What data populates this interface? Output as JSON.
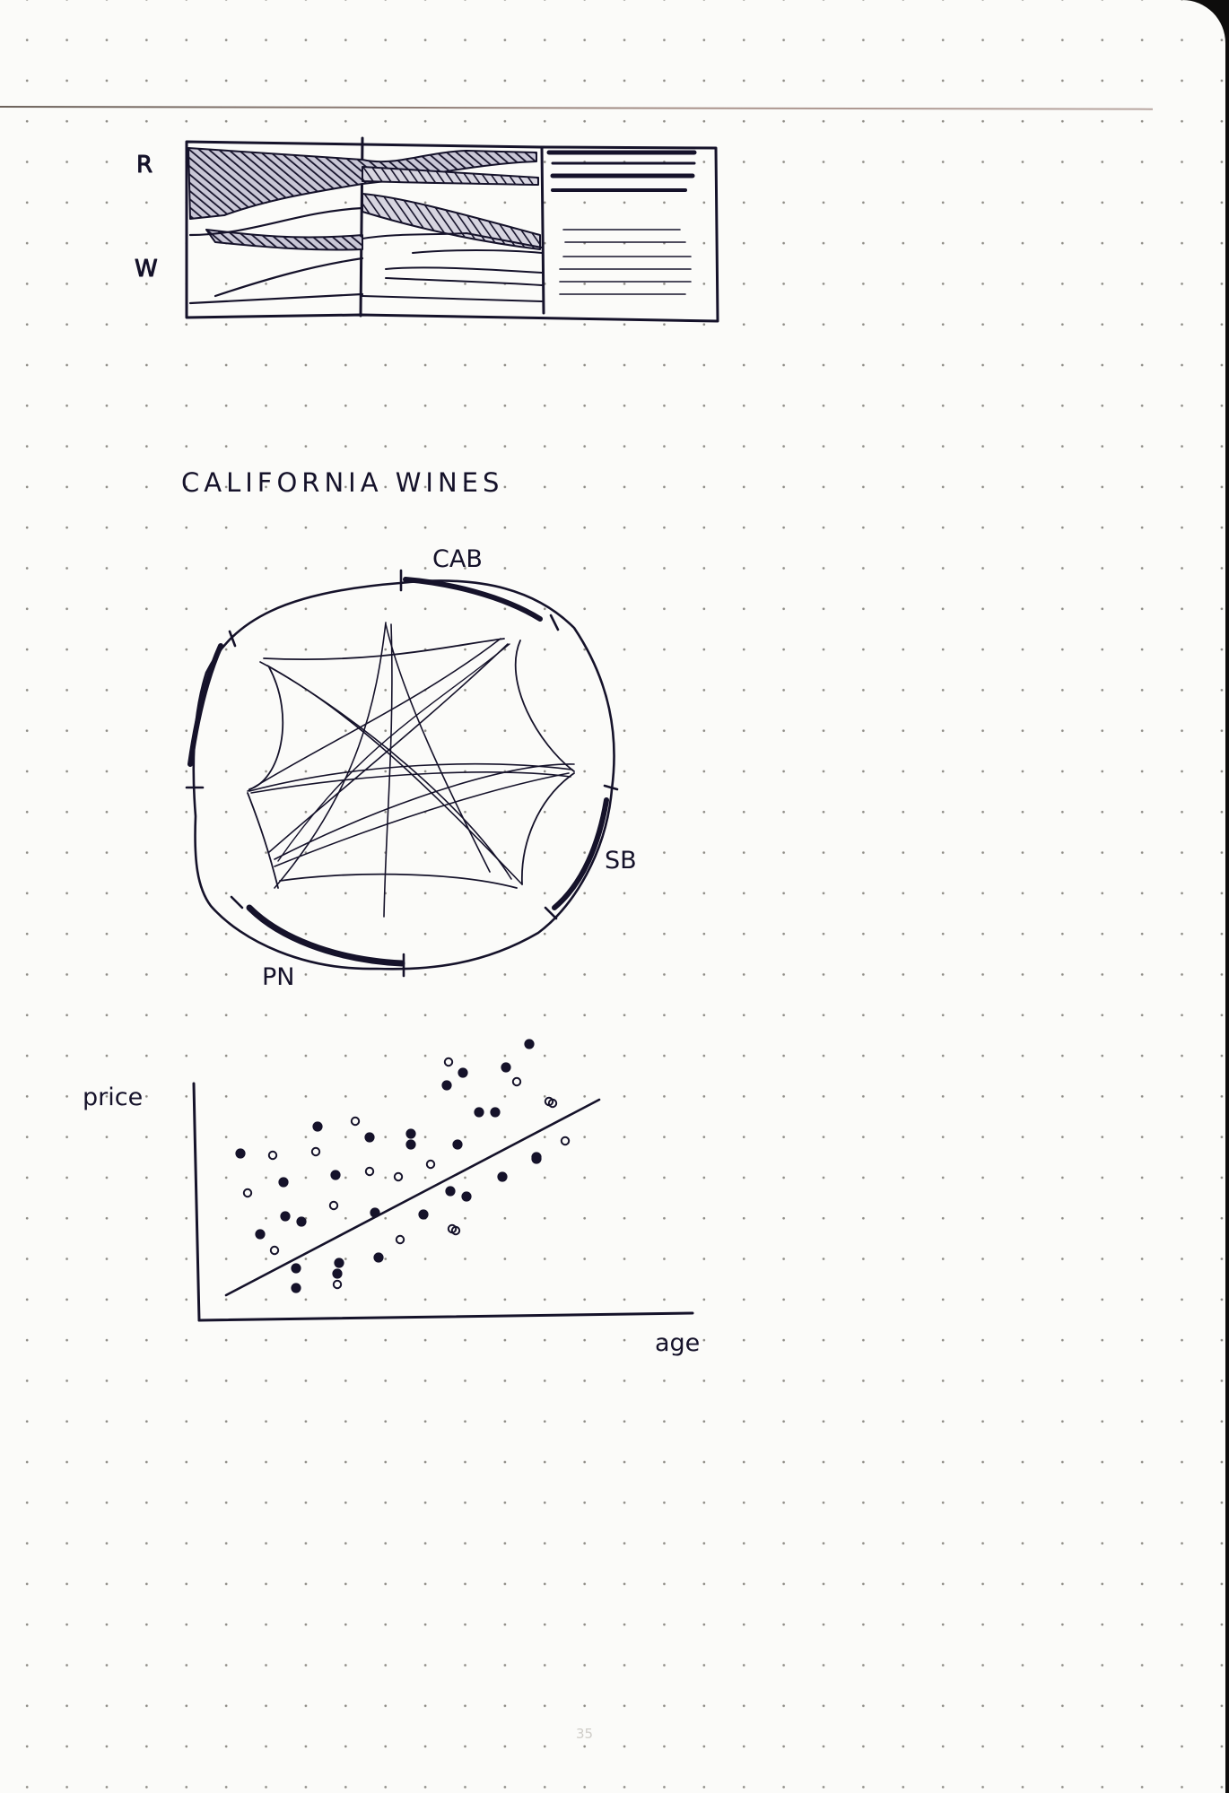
{
  "page": {
    "number": "35",
    "ink_color": "#15122a",
    "paper_color": "#fbfbf9"
  },
  "alluvial_sketch": {
    "row_labels": [
      "R",
      "W"
    ]
  },
  "chord_sketch": {
    "title": "CALIFORNIA WINES",
    "segment_labels": [
      "CAB",
      "SB",
      "PN"
    ]
  },
  "scatter_sketch": {
    "y_label": "price",
    "x_label": "age",
    "trend": "positive"
  }
}
